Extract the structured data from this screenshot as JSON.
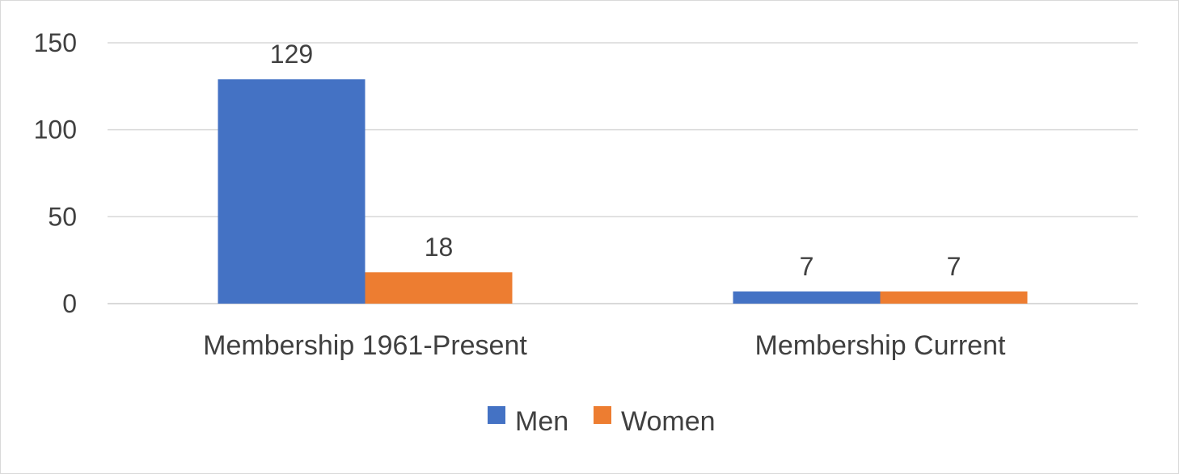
{
  "chart_data": {
    "type": "bar",
    "title": "",
    "xlabel": "",
    "ylabel": "",
    "categories": [
      "Membership 1961-Present",
      "Membership Current"
    ],
    "series": [
      {
        "name": "Men",
        "values": [
          129,
          7
        ],
        "color": "#4472C4"
      },
      {
        "name": "Women",
        "values": [
          18,
          7
        ],
        "color": "#ED7D31"
      }
    ],
    "ylim": [
      0,
      150
    ],
    "yticks": [
      0,
      50,
      100,
      150
    ],
    "grid": true,
    "data_labels": true,
    "legend": "bottom-center"
  }
}
